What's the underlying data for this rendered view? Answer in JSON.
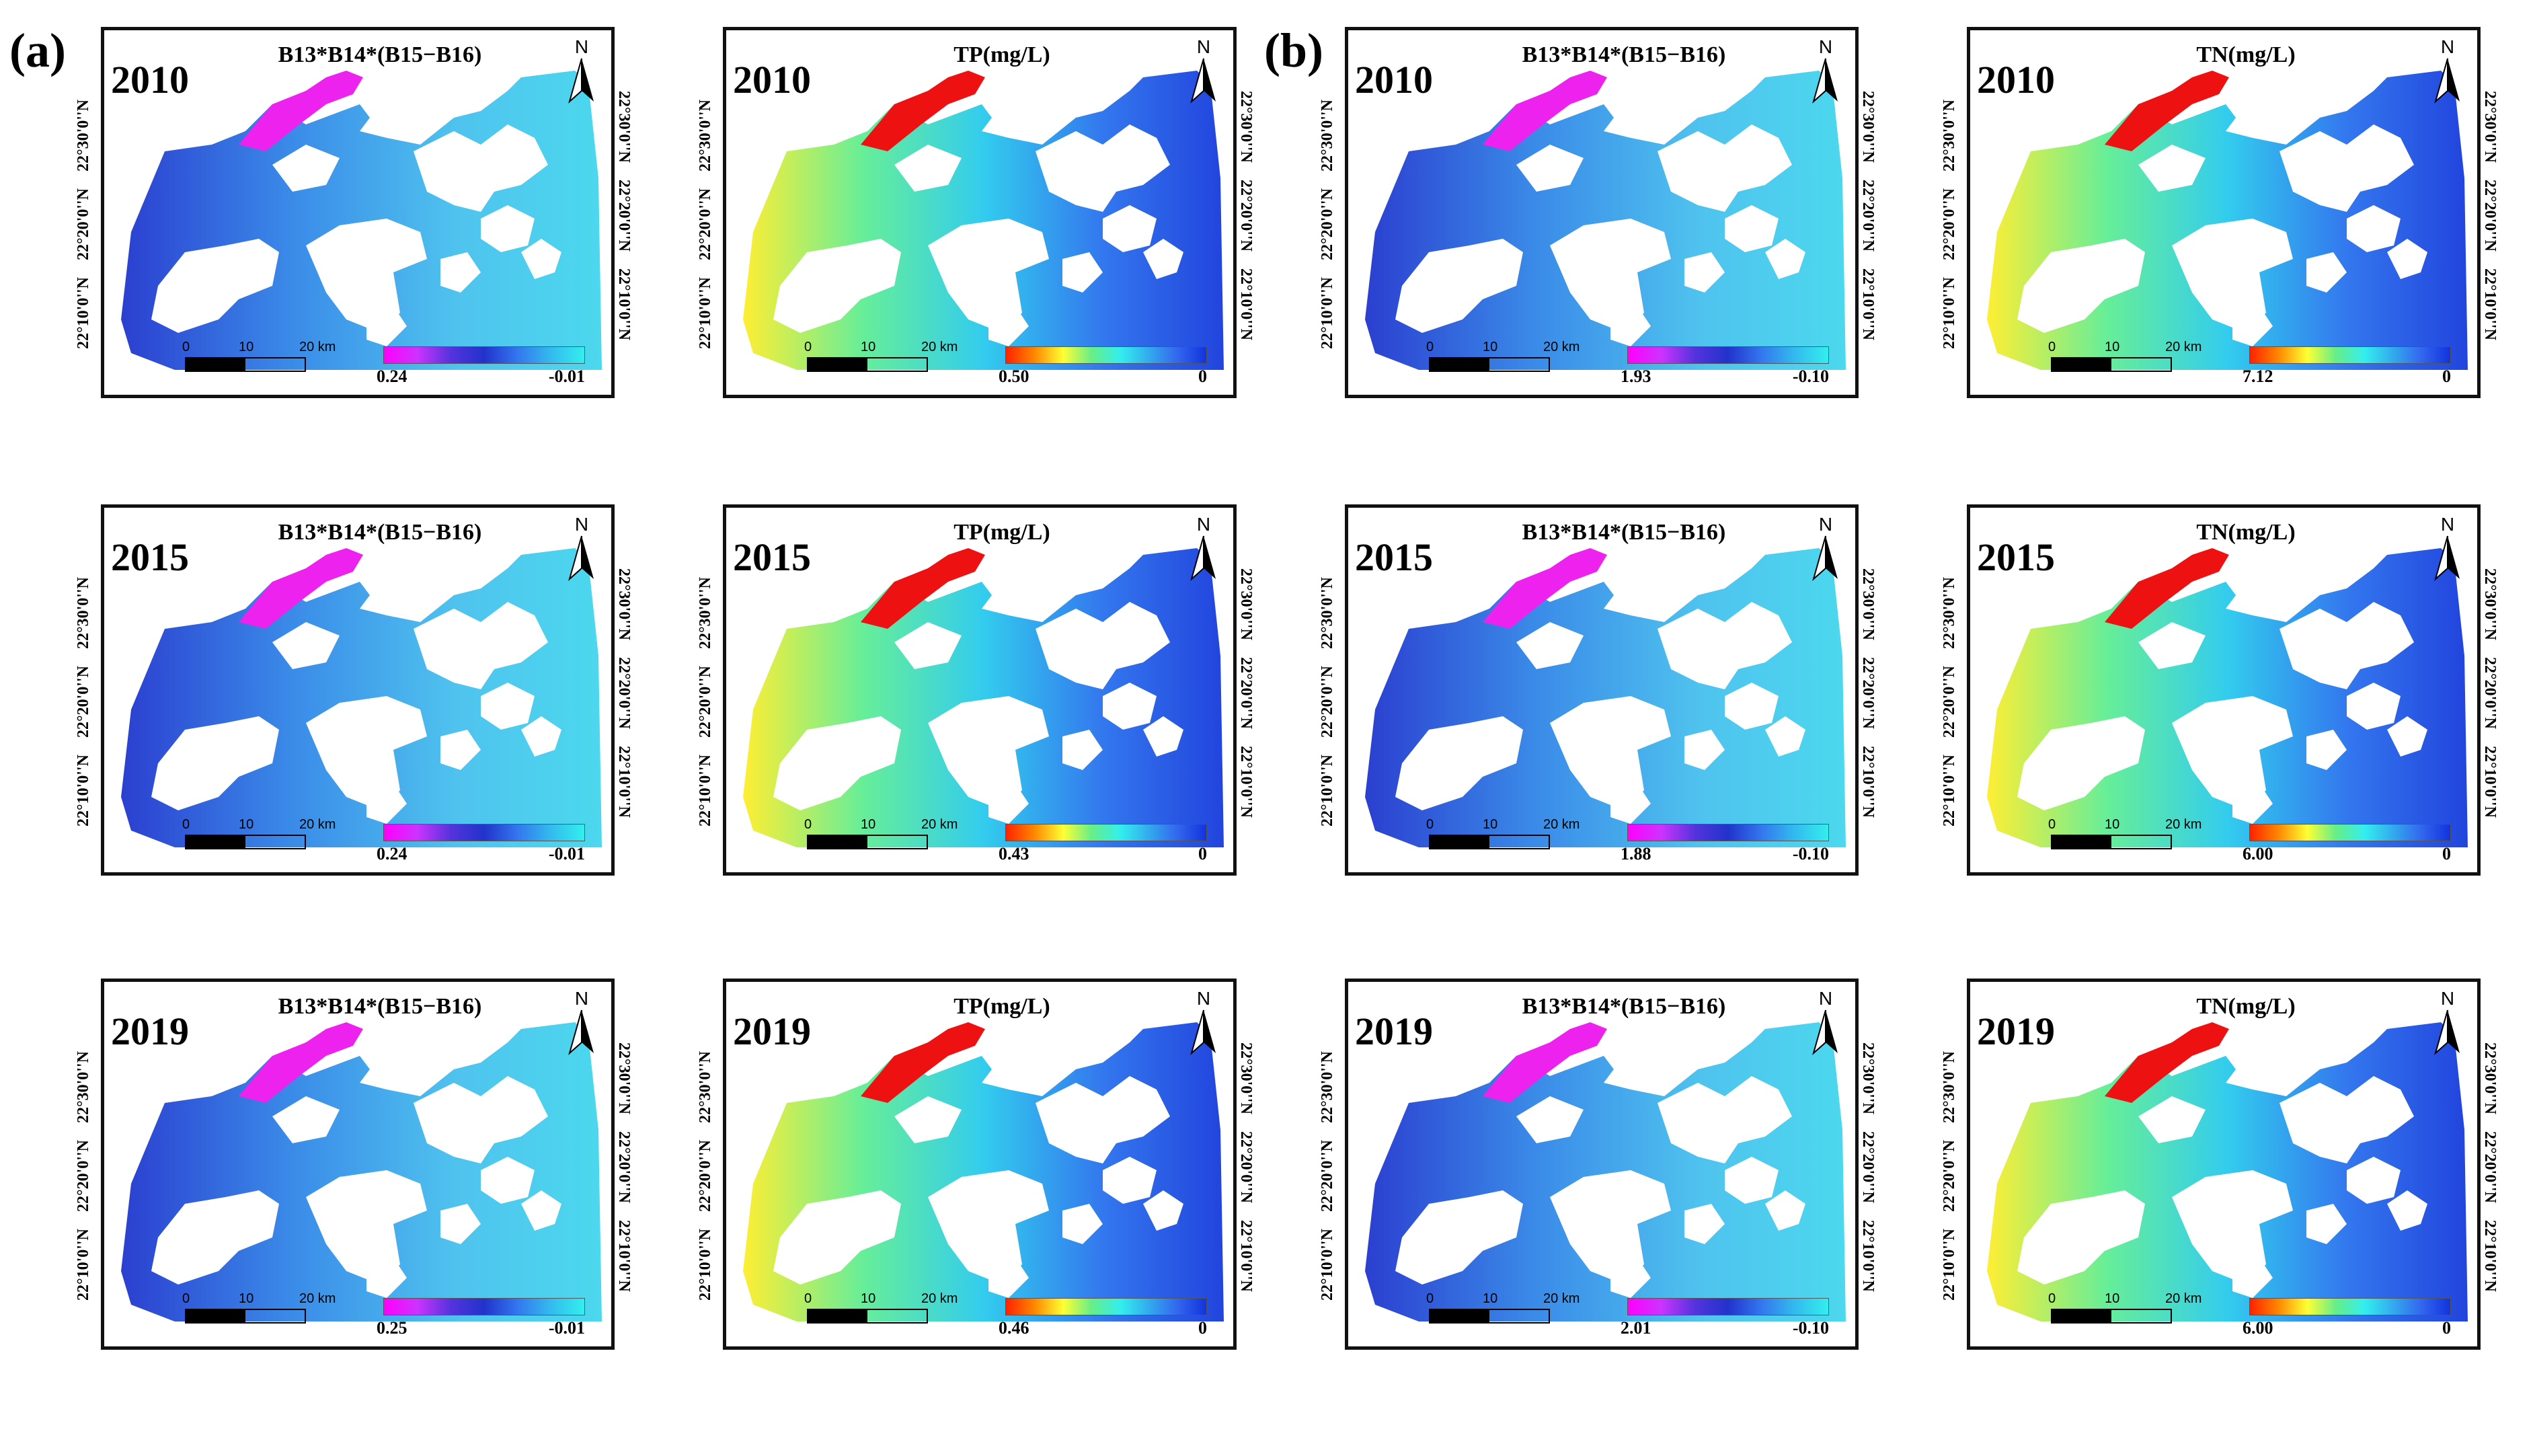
{
  "figure": {
    "section_labels": [
      "(a)",
      "(b)"
    ],
    "north_letter": "N",
    "scale_ticks": [
      "0",
      "10",
      "20 km"
    ],
    "lat_labels": [
      "22°30'0''N",
      "22°20'0''N",
      "22°10'0''N"
    ],
    "colors": {
      "gradient_index": [
        "#ff00ff",
        "#2233cc",
        "#33eeee"
      ],
      "gradient_conc": [
        "#ff2200",
        "#ffff33",
        "#33eeee",
        "#1133dd"
      ],
      "frame": "#111111"
    }
  },
  "panels": [
    {
      "year": "2010",
      "title": "B13*B14*(B15−B16)",
      "min": "0.24",
      "max": "-0.01",
      "type": "index"
    },
    {
      "year": "2010",
      "title": "TP(mg/L)",
      "min": "0.50",
      "max": "0",
      "type": "conc"
    },
    {
      "year": "2010",
      "title": "B13*B14*(B15−B16)",
      "min": "1.93",
      "max": "-0.10",
      "type": "index"
    },
    {
      "year": "2010",
      "title": "TN(mg/L)",
      "min": "7.12",
      "max": "0",
      "type": "conc"
    },
    {
      "year": "2015",
      "title": "B13*B14*(B15−B16)",
      "min": "0.24",
      "max": "-0.01",
      "type": "index"
    },
    {
      "year": "2015",
      "title": "TP(mg/L)",
      "min": "0.43",
      "max": "0",
      "type": "conc"
    },
    {
      "year": "2015",
      "title": "B13*B14*(B15−B16)",
      "min": "1.88",
      "max": "-0.10",
      "type": "index"
    },
    {
      "year": "2015",
      "title": "TN(mg/L)",
      "min": "6.00",
      "max": "0",
      "type": "conc"
    },
    {
      "year": "2019",
      "title": "B13*B14*(B15−B16)",
      "min": "0.25",
      "max": "-0.01",
      "type": "index"
    },
    {
      "year": "2019",
      "title": "TP(mg/L)",
      "min": "0.46",
      "max": "0",
      "type": "conc"
    },
    {
      "year": "2019",
      "title": "B13*B14*(B15−B16)",
      "min": "2.01",
      "max": "-0.10",
      "type": "index"
    },
    {
      "year": "2019",
      "title": "TN(mg/L)",
      "min": "6.00",
      "max": "0",
      "type": "conc"
    }
  ]
}
